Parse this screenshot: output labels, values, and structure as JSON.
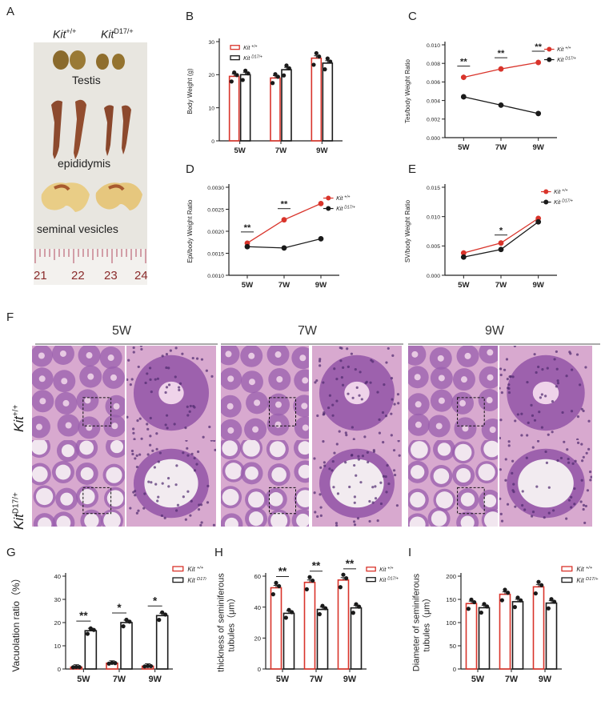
{
  "panel_letters": {
    "A": "A",
    "B": "B",
    "C": "C",
    "D": "D",
    "E": "E",
    "F": "F",
    "G": "G",
    "H": "H",
    "I": "I"
  },
  "genotype": {
    "wt_base": "Kit",
    "wt_sup": "+/+",
    "mut_base": "Kit",
    "mut_sup": "D17/+"
  },
  "photo_labels": {
    "testis": "Testis",
    "epididymis": "epididymis",
    "seminal": "seminal vesicles"
  },
  "ruler_numbers": [
    "21",
    "22",
    "23",
    "24"
  ],
  "histology": {
    "timepoints": [
      "5W",
      "7W",
      "9W"
    ]
  },
  "colors": {
    "wt": "#d9342b",
    "mut": "#1a1a1a"
  },
  "chart_data": [
    {
      "id": "B",
      "type": "bar",
      "ylabel": "Body Weight (g)",
      "categories": [
        "5W",
        "7W",
        "9W"
      ],
      "ylim": [
        0,
        30
      ],
      "yticks": [
        "0",
        "10",
        "20",
        "30"
      ],
      "series": [
        {
          "name": "Kit +/+",
          "values": [
            19.5,
            19,
            25
          ]
        },
        {
          "name": "Kit D17/+",
          "values": [
            20,
            21.5,
            23.5
          ]
        }
      ],
      "annotations": []
    },
    {
      "id": "C",
      "type": "line",
      "ylabel": "Tes/body Weight Ratio",
      "categories": [
        "5W",
        "7W",
        "9W"
      ],
      "ylim": [
        0,
        0.01
      ],
      "yticks": [
        "0.000",
        "0.002",
        "0.004",
        "0.006",
        "0.008",
        "0.010"
      ],
      "series": [
        {
          "name": "Kit +/+",
          "values": [
            0.0065,
            0.0074,
            0.0081
          ]
        },
        {
          "name": "Kit D17/+",
          "values": [
            0.0044,
            0.0035,
            0.0026
          ]
        }
      ],
      "annotations": [
        "**",
        "**",
        "**"
      ]
    },
    {
      "id": "D",
      "type": "line",
      "ylabel": "Epi/body Weight Ratio",
      "categories": [
        "5W",
        "7W",
        "9W"
      ],
      "ylim": [
        0.001,
        0.003
      ],
      "yticks": [
        "0.0010",
        "0.0015",
        "0.0020",
        "0.0025",
        "0.0030"
      ],
      "series": [
        {
          "name": "Kit +/+",
          "values": [
            0.00173,
            0.00226,
            0.00263
          ]
        },
        {
          "name": "Kit D17/+",
          "values": [
            0.00165,
            0.00162,
            0.00183
          ]
        }
      ],
      "annotations": [
        "**",
        "**",
        ""
      ]
    },
    {
      "id": "E",
      "type": "line",
      "ylabel": "SV/body Weight Ratio",
      "categories": [
        "5W",
        "7W",
        "9W"
      ],
      "ylim": [
        0,
        0.015
      ],
      "yticks": [
        "0.000",
        "0.005",
        "0.010",
        "0.015"
      ],
      "series": [
        {
          "name": "Kit +/+",
          "values": [
            0.0038,
            0.0055,
            0.0097
          ]
        },
        {
          "name": "Kit D17/+",
          "values": [
            0.0031,
            0.0044,
            0.0091
          ]
        }
      ],
      "annotations": [
        "",
        "*",
        ""
      ]
    },
    {
      "id": "G",
      "type": "bar",
      "ylabel": "Vacuolation ratio（%）",
      "categories": [
        "5W",
        "7W",
        "9W"
      ],
      "ylim": [
        0,
        40
      ],
      "yticks": [
        "0",
        "10",
        "20",
        "30",
        "40"
      ],
      "series": [
        {
          "name": "Kit +/+",
          "values": [
            0.8,
            2.5,
            1.2
          ]
        },
        {
          "name": "Kit D17/+",
          "values": [
            16.5,
            20,
            23
          ]
        }
      ],
      "annotations": [
        "**",
        "*",
        "*"
      ]
    },
    {
      "id": "H",
      "type": "bar",
      "ylabel": "thickness of seminiferous tubules（μm）",
      "categories": [
        "5W",
        "7W",
        "9W"
      ],
      "ylim": [
        0,
        60
      ],
      "yticks": [
        "0",
        "20",
        "40",
        "60"
      ],
      "series": [
        {
          "name": "Kit +/+",
          "values": [
            52.5,
            56,
            57.5
          ]
        },
        {
          "name": "Kit D17/+",
          "values": [
            36,
            38.5,
            39.5
          ]
        }
      ],
      "annotations": [
        "**",
        "**",
        "**"
      ]
    },
    {
      "id": "I",
      "type": "bar",
      "ylabel": "Diameter of seminiferous tubules（μm）",
      "categories": [
        "5W",
        "7W",
        "9W"
      ],
      "ylim": [
        0,
        200
      ],
      "yticks": [
        "0",
        "50",
        "100",
        "150",
        "200"
      ],
      "series": [
        {
          "name": "Kit +/+",
          "values": [
            141,
            161,
            177
          ]
        },
        {
          "name": "Kit D17/+",
          "values": [
            132,
            145,
            142
          ]
        }
      ],
      "annotations": []
    }
  ]
}
